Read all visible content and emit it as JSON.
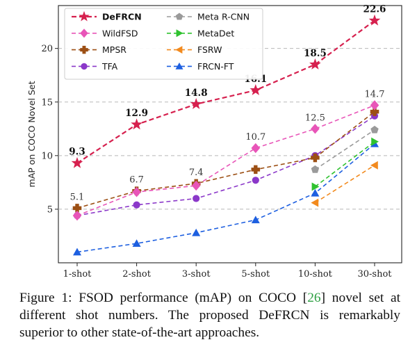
{
  "chart_data": {
    "type": "line",
    "categories": [
      "1-shot",
      "2-shot",
      "3-shot",
      "5-shot",
      "10-shot",
      "30-shot"
    ],
    "ylabel": "mAP on COCO Novel Set",
    "xlabel": "",
    "ylim": [
      0,
      24
    ],
    "yticks": [
      5,
      10,
      15,
      20
    ],
    "grid": "horizontal dashed at 5, 10, 15, 20",
    "legend_position": "top-left",
    "series": [
      {
        "name": "DeFRCN",
        "color": "#d6204e",
        "marker": "star",
        "dash": "dashed",
        "bold": true,
        "values": [
          9.3,
          12.9,
          14.8,
          16.1,
          18.5,
          22.6
        ],
        "labels": [
          "9.3",
          "12.9",
          "14.8",
          "16.1",
          "18.5",
          "22.6"
        ]
      },
      {
        "name": "WildFSD",
        "color": "#e855b8",
        "marker": "diamond",
        "dash": "dashed",
        "values": [
          4.4,
          6.6,
          7.2,
          10.7,
          12.5,
          14.7
        ],
        "labels": [
          null,
          null,
          null,
          "10.7",
          "12.5",
          "14.7"
        ]
      },
      {
        "name": "MPSR",
        "color": "#9c4f14",
        "marker": "plus",
        "dash": "dashed",
        "values": [
          5.1,
          6.7,
          7.4,
          8.7,
          9.8,
          14.1
        ],
        "labels": [
          "5.1",
          "6.7",
          "7.4",
          null,
          null,
          null
        ]
      },
      {
        "name": "TFA",
        "color": "#8b38c9",
        "marker": "circle",
        "dash": "dashed",
        "values": [
          4.4,
          5.4,
          6.0,
          7.7,
          10.0,
          13.7
        ],
        "labels": [
          null,
          null,
          null,
          null,
          null,
          null
        ]
      },
      {
        "name": "Meta R-CNN",
        "color": "#9a9a9a",
        "marker": "pentagon",
        "dash": "dashed",
        "values": [
          null,
          null,
          null,
          null,
          8.7,
          12.4
        ],
        "labels": [
          null,
          null,
          null,
          null,
          null,
          null
        ]
      },
      {
        "name": "MetaDet",
        "color": "#2fc22f",
        "marker": "triangle-right",
        "dash": "dashed",
        "values": [
          null,
          null,
          null,
          null,
          7.1,
          11.3
        ],
        "labels": [
          null,
          null,
          null,
          null,
          null,
          null
        ]
      },
      {
        "name": "FSRW",
        "color": "#f28a1e",
        "marker": "triangle-left",
        "dash": "dashed",
        "values": [
          null,
          null,
          null,
          null,
          5.6,
          9.1
        ],
        "labels": [
          null,
          null,
          null,
          null,
          null,
          null
        ]
      },
      {
        "name": "FRCN-FT",
        "color": "#1d5fe0",
        "marker": "triangle-up",
        "dash": "dashed",
        "values": [
          1.0,
          1.8,
          2.8,
          4.0,
          6.5,
          11.1
        ],
        "labels": [
          null,
          null,
          null,
          null,
          null,
          null
        ]
      }
    ]
  },
  "caption": {
    "prefix": "Figure 1: FSOD performance (mAP) on COCO [",
    "cite": "26",
    "suffix": "] novel set at different shot numbers. The proposed DeFRCN is remarkably superior to other state-of-the-art approaches."
  }
}
